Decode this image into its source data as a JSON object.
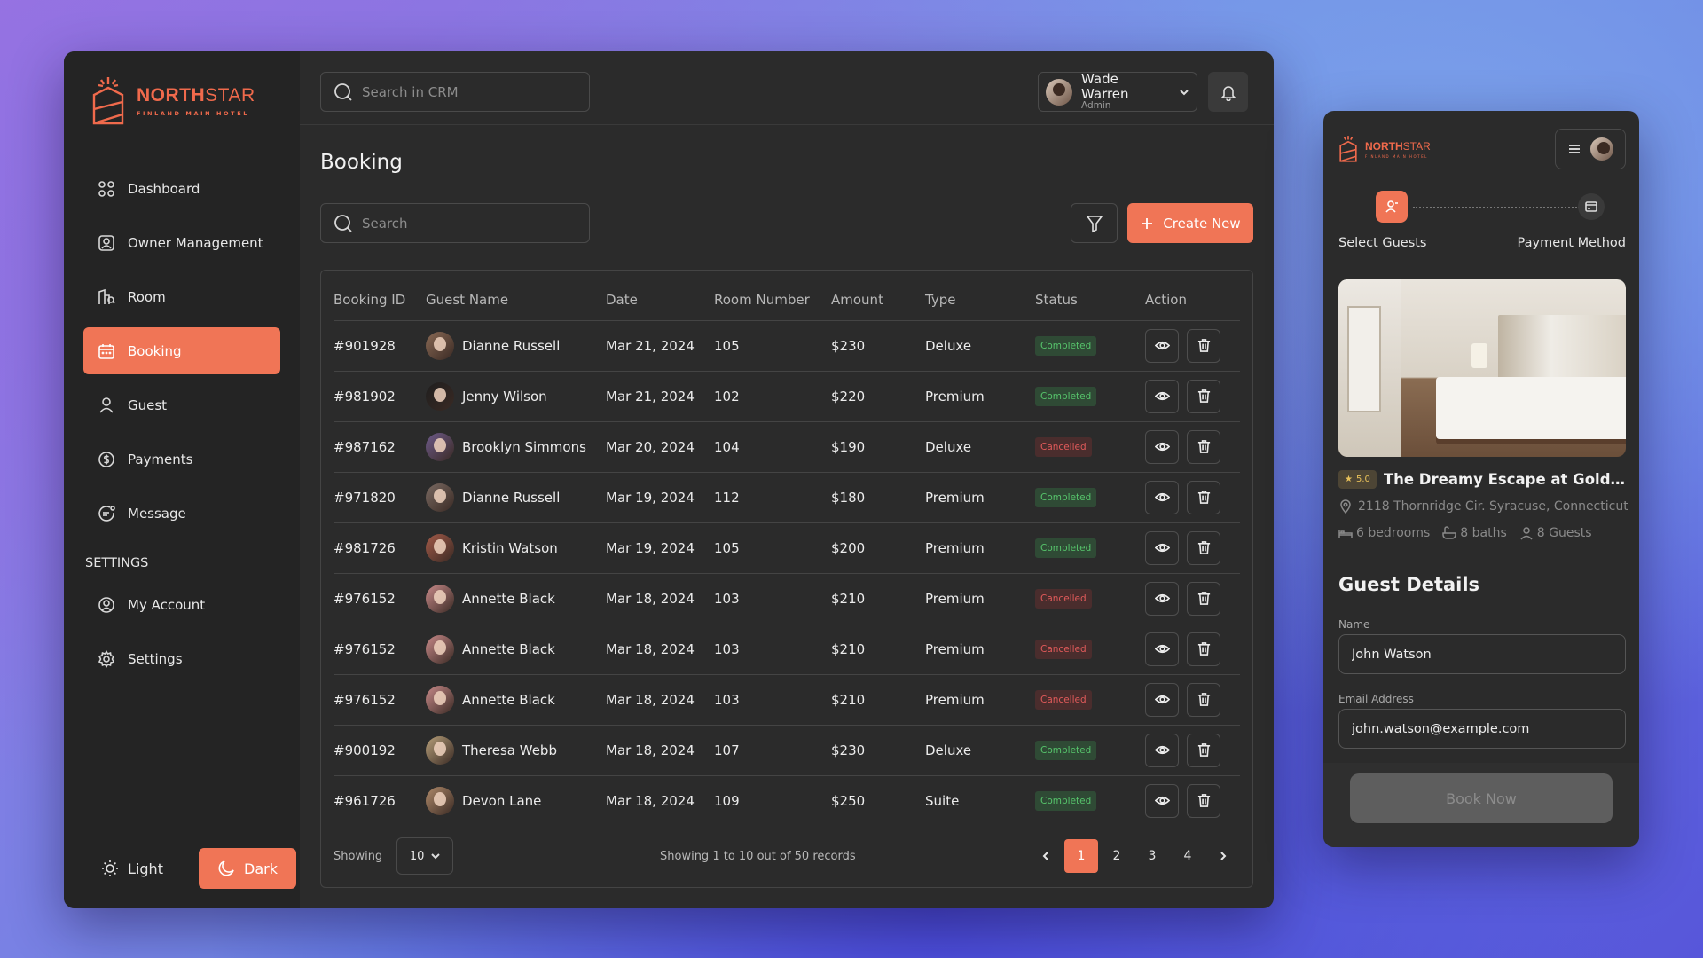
{
  "brand": {
    "name_bold": "NORTH",
    "name_thin": "STAR",
    "sub": "FINLAND MAIN HOTEL"
  },
  "sidebar": {
    "items": [
      {
        "label": "Dashboard",
        "icon": "dashboard-icon"
      },
      {
        "label": "Owner Management",
        "icon": "owner-icon"
      },
      {
        "label": "Room",
        "icon": "room-icon"
      },
      {
        "label": "Booking",
        "icon": "calendar-icon",
        "active": true
      },
      {
        "label": "Guest",
        "icon": "guest-icon"
      },
      {
        "label": "Payments",
        "icon": "dollar-icon"
      },
      {
        "label": "Message",
        "icon": "message-icon"
      }
    ],
    "settings_label": "SETTINGS",
    "settings_items": [
      {
        "label": "My Account",
        "icon": "user-circle-icon"
      },
      {
        "label": "Settings",
        "icon": "gear-icon"
      }
    ],
    "theme": {
      "light": "Light",
      "dark": "Dark",
      "selected": "Dark"
    }
  },
  "header": {
    "search_placeholder": "Search in CRM",
    "user": {
      "name": "Wade Warren",
      "role": "Admin"
    }
  },
  "booking": {
    "title": "Booking",
    "search_placeholder": "Search",
    "create_label": "Create New",
    "columns": [
      "Booking ID",
      "Guest Name",
      "Date",
      "Room Number",
      "Amount",
      "Type",
      "Status",
      "Action"
    ],
    "rows": [
      {
        "id": "#901928",
        "guest": "Dianne Russell",
        "date": "Mar 21, 2024",
        "room": "105",
        "amount": "$230",
        "type": "Deluxe",
        "status": "Completed"
      },
      {
        "id": "#981902",
        "guest": "Jenny Wilson",
        "date": "Mar 21, 2024",
        "room": "102",
        "amount": "$220",
        "type": "Premium",
        "status": "Completed"
      },
      {
        "id": "#987162",
        "guest": "Brooklyn Simmons",
        "date": "Mar 20, 2024",
        "room": "104",
        "amount": "$190",
        "type": "Deluxe",
        "status": "Cancelled"
      },
      {
        "id": "#971820",
        "guest": "Dianne Russell",
        "date": "Mar 19, 2024",
        "room": "112",
        "amount": "$180",
        "type": "Premium",
        "status": "Completed"
      },
      {
        "id": "#981726",
        "guest": "Kristin Watson",
        "date": "Mar 19, 2024",
        "room": "105",
        "amount": "$200",
        "type": "Premium",
        "status": "Completed"
      },
      {
        "id": "#976152",
        "guest": "Annette Black",
        "date": "Mar 18, 2024",
        "room": "103",
        "amount": "$210",
        "type": "Premium",
        "status": "Cancelled"
      },
      {
        "id": "#976152",
        "guest": "Annette Black",
        "date": "Mar 18, 2024",
        "room": "103",
        "amount": "$210",
        "type": "Premium",
        "status": "Cancelled"
      },
      {
        "id": "#976152",
        "guest": "Annette Black",
        "date": "Mar 18, 2024",
        "room": "103",
        "amount": "$210",
        "type": "Premium",
        "status": "Cancelled"
      },
      {
        "id": "#900192",
        "guest": "Theresa Webb",
        "date": "Mar 18, 2024",
        "room": "107",
        "amount": "$230",
        "type": "Deluxe",
        "status": "Completed"
      },
      {
        "id": "#961726",
        "guest": "Devon Lane",
        "date": "Mar 18, 2024",
        "room": "109",
        "amount": "$250",
        "type": "Suite",
        "status": "Completed"
      }
    ],
    "footer": {
      "showing_label": "Showing",
      "per_page": "10",
      "records_text": "Showing 1 to 10 out of 50 records",
      "pages": [
        "1",
        "2",
        "3",
        "4"
      ],
      "current_page": "1"
    }
  },
  "mobile": {
    "steps": {
      "first": "Select Guests",
      "second": "Payment Method"
    },
    "listing": {
      "rating": "5.0",
      "title": "The Dreamy Escape at Golden S...",
      "address": "2118 Thornridge Cir. Syracuse, Connecticut",
      "bedrooms": "6 bedrooms",
      "baths": "8 baths",
      "guests": "8 Guests"
    },
    "form": {
      "heading": "Guest Details",
      "name_label": "Name",
      "name_value": "John Watson",
      "email_label": "Email Address",
      "email_value": "john.watson@example.com"
    },
    "book_label": "Book Now"
  },
  "colors": {
    "accent": "#f07556",
    "completed": "#56c36b",
    "cancelled": "#e05a5a",
    "panel": "#2b2b2b"
  }
}
